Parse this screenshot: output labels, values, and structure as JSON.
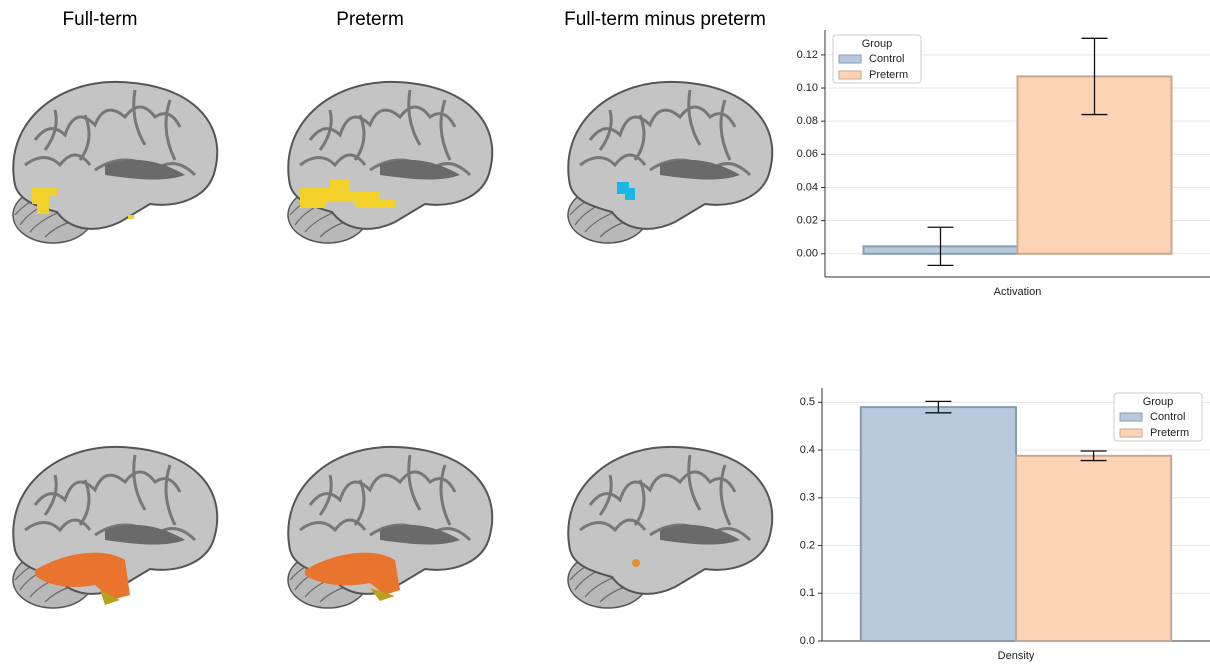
{
  "panel_titles": [
    "Full-term",
    "Preterm",
    "Full-term minus preterm"
  ],
  "chart_data": [
    {
      "type": "bar",
      "categories": [
        "Activation"
      ],
      "series": [
        {
          "name": "Control",
          "color": "#b7c9dc",
          "values": [
            0.0045
          ],
          "errors": [
            0.0115
          ]
        },
        {
          "name": "Preterm",
          "color": "#fcd3b5",
          "values": [
            0.107
          ],
          "errors": [
            0.023
          ]
        }
      ],
      "ylim": [
        -0.014,
        0.135
      ],
      "yticks": [
        {
          "value": 0,
          "label": "0.00"
        },
        0.02,
        0.04,
        0.06,
        0.08,
        {
          "value": 0.1,
          "label": "0.10"
        },
        0.12
      ],
      "grid": true,
      "legend": "upper left",
      "legend_title": "Group"
    },
    {
      "type": "bar",
      "categories": [
        "Density"
      ],
      "series": [
        {
          "name": "Control",
          "color": "#b7c9dc",
          "values": [
            0.49
          ],
          "errors": [
            0.012
          ]
        },
        {
          "name": "Preterm",
          "color": "#fcd3b5",
          "values": [
            0.388
          ],
          "errors": [
            0.01
          ]
        }
      ],
      "ylim": [
        0,
        0.53
      ],
      "yticks": [
        {
          "value": 0,
          "label": "0.0"
        },
        0.1,
        0.2,
        0.3,
        0.4,
        0.5
      ],
      "grid": true,
      "legend": "upper right",
      "legend_title": "Group"
    }
  ]
}
